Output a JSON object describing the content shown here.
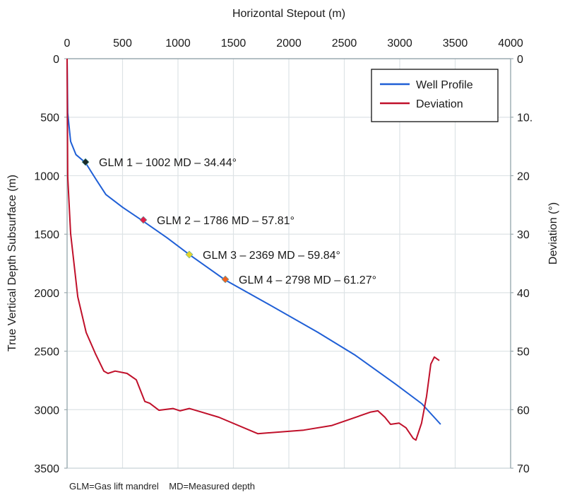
{
  "chart_data": {
    "type": "line",
    "title": "",
    "xlabel": "Horizontal Stepout (m)",
    "ylabel": "True Vertical Depth Subsurface (m)",
    "y2label": "Deviation (°)",
    "xlim": [
      0,
      4000
    ],
    "ylim": [
      3500,
      0
    ],
    "y2lim": [
      70,
      0
    ],
    "grid": true,
    "legend_position": "top-right",
    "x_ticks": [
      "0",
      "500",
      "1000",
      "1500",
      "2000",
      "2500",
      "3000",
      "3500",
      "4000"
    ],
    "y_ticks": [
      "0",
      "500",
      "1000",
      "1500",
      "2000",
      "2500",
      "3000",
      "3500"
    ],
    "y2_ticks": [
      "0",
      "10.",
      "20",
      "30",
      "40",
      "50",
      "60",
      "70"
    ],
    "series": [
      {
        "name": "Well Profile",
        "color": "#1f5fd6",
        "axis": "left",
        "x": [
          0,
          6,
          32,
          80,
          166,
          260,
          350,
          500,
          688,
          900,
          1102,
          1427,
          1800,
          2261,
          2600,
          2962,
          3200,
          3369
        ],
        "y": [
          0,
          465,
          707,
          820,
          889,
          1030,
          1161,
          1270,
          1390,
          1530,
          1674,
          1892,
          2090,
          2339,
          2535,
          2781,
          2950,
          3125
        ]
      },
      {
        "name": "Deviation",
        "color": "#c0102a",
        "axis": "right",
        "x": [
          0,
          6,
          32,
          96,
          172,
          255,
          331,
          369,
          433,
          541,
          624,
          701,
          745,
          828,
          955,
          1019,
          1102,
          1210,
          1369,
          1720,
          2134,
          2389,
          2739,
          2803,
          2866,
          2917,
          2994,
          3057,
          3121,
          3146,
          3197,
          3242,
          3280,
          3312,
          3357
        ],
        "y": [
          0,
          20.2,
          29.9,
          40.7,
          46.8,
          50.4,
          53.4,
          53.8,
          53.4,
          53.8,
          54.9,
          58.6,
          58.9,
          60.1,
          59.8,
          60.2,
          59.8,
          60.4,
          61.3,
          64.1,
          63.5,
          62.7,
          60.4,
          60.2,
          61.3,
          62.5,
          62.3,
          63.1,
          64.9,
          65.2,
          62.3,
          57.7,
          52.2,
          51.0,
          51.6
        ]
      }
    ],
    "markers": [
      {
        "label": "GLM 1 – 1002 MD – 34.44°",
        "x": 166,
        "y": 883,
        "color": "#1b2a2a"
      },
      {
        "label": "GLM 2 – 1786 MD – 57.81°",
        "x": 688,
        "y": 1378,
        "color": "#e0204a"
      },
      {
        "label": "GLM 3 – 2369  MD – 59.84°",
        "x": 1102,
        "y": 1674,
        "color": "#e6d42a"
      },
      {
        "label": "GLM 4 – 2798 MD – 61.27°",
        "x": 1427,
        "y": 1886,
        "color": "#f06020"
      }
    ],
    "footnote": "GLM=Gas lift mandrel    MD=Measured depth"
  }
}
